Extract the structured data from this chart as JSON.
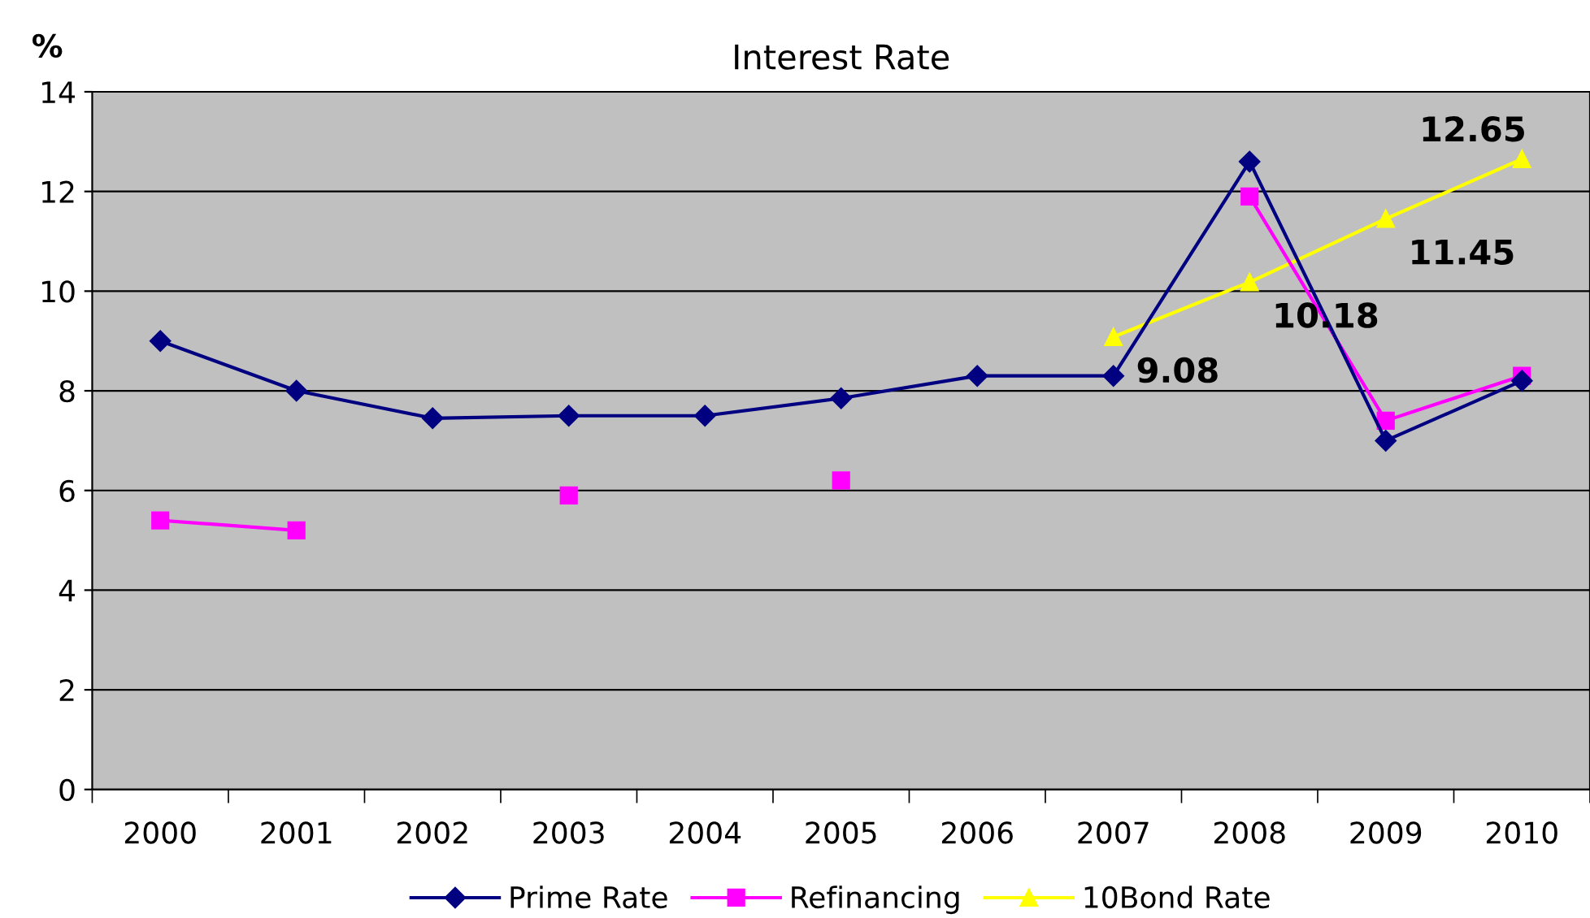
{
  "chart_data": {
    "type": "line",
    "title": "Interest Rate",
    "ylabel": "%",
    "categories": [
      "2000",
      "2001",
      "2002",
      "2003",
      "2004",
      "2005",
      "2006",
      "2007",
      "2008",
      "2009",
      "2010"
    ],
    "series": [
      {
        "name": "Prime Rate",
        "color": "#000080",
        "marker": "diamond",
        "values": [
          9.0,
          8.0,
          7.45,
          7.5,
          7.5,
          7.85,
          8.3,
          8.3,
          12.6,
          7.0,
          8.2
        ]
      },
      {
        "name": "Refinancing",
        "color": "#ff00ff",
        "marker": "square",
        "values": [
          5.4,
          5.2,
          null,
          5.9,
          null,
          6.2,
          null,
          null,
          11.9,
          7.4,
          8.3
        ]
      },
      {
        "name": "10Bond Rate",
        "color": "#ffff00",
        "marker": "triangle",
        "values": [
          null,
          null,
          null,
          null,
          null,
          null,
          null,
          9.08,
          10.18,
          11.45,
          12.65
        ],
        "value_labels": [
          null,
          null,
          null,
          null,
          null,
          null,
          null,
          "9.08",
          "10.18",
          "11.45",
          "12.65"
        ]
      }
    ],
    "ylim": [
      0,
      14
    ],
    "yticks": [
      0,
      2,
      4,
      6,
      8,
      10,
      12,
      14
    ],
    "grid": "y",
    "legend": "bottom",
    "line_style": "solid"
  }
}
